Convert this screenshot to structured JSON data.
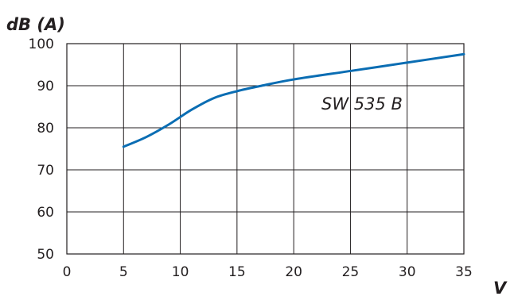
{
  "chart_data": {
    "type": "line",
    "title": "",
    "xlabel": "V",
    "ylabel": "dB (A)",
    "xlim": [
      0,
      35
    ],
    "ylim": [
      50,
      100
    ],
    "xticks": [
      0,
      5,
      10,
      15,
      20,
      25,
      30,
      35
    ],
    "yticks": [
      50,
      60,
      70,
      80,
      90,
      100
    ],
    "grid": true,
    "legend": "none",
    "series": [
      {
        "name": "SW 535 B",
        "color": "#0a6db3",
        "x": [
          5,
          7,
          9,
          11,
          13,
          15,
          17,
          20,
          25,
          30,
          35
        ],
        "y": [
          75.5,
          77.8,
          80.8,
          84.3,
          87.1,
          88.7,
          89.9,
          91.5,
          93.5,
          95.5,
          97.5
        ]
      }
    ]
  }
}
